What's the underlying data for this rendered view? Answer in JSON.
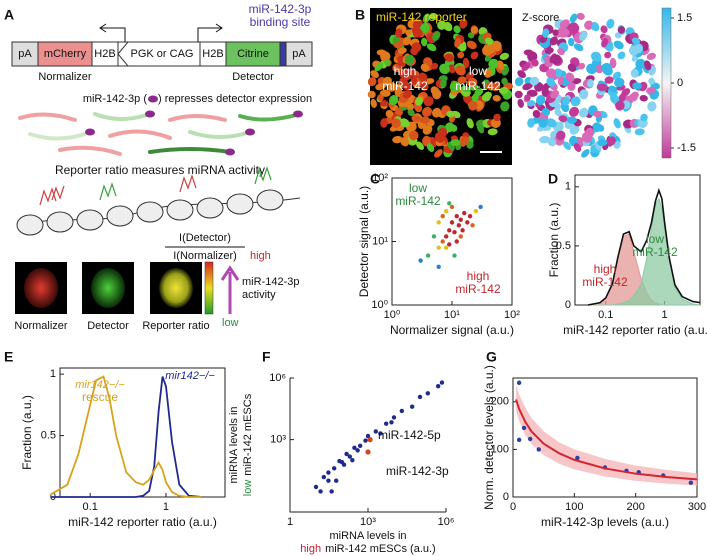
{
  "panel_labels": [
    "A",
    "B",
    "C",
    "D",
    "E",
    "F",
    "G"
  ],
  "panel_a": {
    "construct": [
      "pA",
      "mCherry",
      "H2B",
      "PGK or CAG",
      "H2B",
      "Citrine",
      "pA"
    ],
    "binding_site": [
      "miR-142-3p",
      "binding site"
    ],
    "normalizer": "Normalizer",
    "detector": "Detector",
    "repression": [
      "miR-142-3p (",
      ") represses detector expression"
    ],
    "ratio_caption": "Reporter ratio measures miRNA activity",
    "ratio_numerator": "I(Detector)",
    "ratio_denominator": "I(Normalizer)",
    "high": "high",
    "low": "low",
    "activity": [
      "miR-142-3p",
      "activity"
    ],
    "image_labels": [
      "Normalizer",
      "Detector",
      "Reporter ratio"
    ]
  },
  "panel_b": {
    "title": "miR-142 reporter",
    "high": [
      "high",
      "miR-142"
    ],
    "low": [
      "low",
      "miR-142"
    ],
    "zscore_title": "Z-score",
    "colorbar_ticks": [
      1.5,
      0,
      -1.5
    ]
  },
  "chart_data": [
    {
      "type": "scatter",
      "xlabel": "Normalizer signal (a.u.)",
      "ylabel": "Detector signal (a.u.)",
      "xlog": true,
      "ylog": true,
      "xlim": [
        1,
        100
      ],
      "ylim": [
        1,
        100
      ],
      "colormap": "density",
      "xticks": [
        {
          "value": 1,
          "label": "10⁰"
        },
        {
          "value": 10,
          "label": "10¹"
        },
        {
          "value": 100,
          "label": "10²"
        }
      ],
      "yticks": [
        {
          "value": 1,
          "label": "10⁰"
        },
        {
          "value": 10,
          "label": "10¹"
        },
        {
          "value": 100,
          "label": "10²"
        }
      ],
      "series": [
        {
          "color": "#2b3f9e",
          "x": [
            3,
            4,
            5,
            6,
            6,
            7,
            7,
            8,
            8,
            9,
            9,
            10,
            10,
            11,
            12,
            12,
            13,
            14,
            15,
            16,
            18,
            20,
            22,
            25,
            30,
            9,
            8,
            11,
            14,
            6
          ],
          "values": [
            5,
            6,
            12,
            8,
            20,
            10,
            25,
            12,
            30,
            15,
            9,
            20,
            35,
            14,
            25,
            10,
            18,
            22,
            15,
            28,
            20,
            25,
            18,
            30,
            35,
            40,
            8,
            6,
            12,
            4
          ]
        }
      ],
      "annotations": [
        {
          "text": "low",
          "color": "#2e8b3e"
        },
        {
          "text": "miR-142",
          "color": "#2e8b3e"
        },
        {
          "text": "high",
          "color": "#c0262d"
        },
        {
          "text": "miR-142",
          "color": "#c0262d"
        }
      ]
    },
    {
      "type": "area",
      "xlabel": "miR-142 reporter ratio (a.u.)",
      "ylabel": "Fraction (a.u.)",
      "xlog": true,
      "xlim": [
        0.03,
        4
      ],
      "ylim": [
        0,
        1.1
      ],
      "xticks": [
        0.1,
        1
      ],
      "yticks": [
        0,
        0.5,
        1
      ],
      "x": [
        0.05,
        0.08,
        0.1,
        0.13,
        0.16,
        0.2,
        0.25,
        0.3,
        0.4,
        0.5,
        0.6,
        0.7,
        0.8,
        0.9,
        1,
        1.2,
        1.5,
        2,
        3,
        4
      ],
      "series": [
        {
          "color": "#e39a95",
          "fill": true,
          "values": [
            0,
            0.02,
            0.06,
            0.18,
            0.4,
            0.58,
            0.6,
            0.45,
            0.22,
            0.1,
            0.04,
            0.02,
            0.01,
            0,
            0,
            0,
            0,
            0,
            0,
            0
          ]
        },
        {
          "color": "#8fc9a3",
          "fill": true,
          "values": [
            0,
            0,
            0,
            0,
            0.01,
            0.02,
            0.04,
            0.08,
            0.18,
            0.4,
            0.65,
            0.85,
            0.9,
            0.82,
            0.65,
            0.38,
            0.15,
            0.05,
            0.01,
            0
          ]
        },
        {
          "color": "#111111",
          "fill": false,
          "values": [
            0,
            0.02,
            0.06,
            0.18,
            0.4,
            0.6,
            0.62,
            0.5,
            0.45,
            0.55,
            0.7,
            0.88,
            0.97,
            0.9,
            0.7,
            0.4,
            0.17,
            0.07,
            0.03,
            0.02
          ]
        }
      ],
      "annotations": [
        {
          "text": "high",
          "color": "#c0262d"
        },
        {
          "text": "miR-142",
          "color": "#c0262d"
        },
        {
          "text": "low",
          "color": "#2e8b3e"
        },
        {
          "text": "miR-142",
          "color": "#2e8b3e"
        }
      ]
    },
    {
      "type": "line",
      "xlabel": "miR-142 reporter ratio (a.u.)",
      "ylabel": "Fraction (a.u.)",
      "xlog": true,
      "xlim": [
        0.04,
        6
      ],
      "ylim": [
        0,
        1.05
      ],
      "xticks": [
        0.1,
        1
      ],
      "yticks": [
        0,
        0.5,
        1
      ],
      "x": [
        0.03,
        0.05,
        0.07,
        0.1,
        0.12,
        0.15,
        0.18,
        0.22,
        0.3,
        0.4,
        0.5,
        0.6,
        0.7,
        0.8,
        0.9,
        1,
        1.2,
        1.5,
        2,
        3
      ],
      "series": [
        {
          "name": "mir142−/−",
          "color": "#1f2a8c",
          "values": [
            0,
            0,
            0,
            0,
            0,
            0,
            0,
            0,
            0,
            0,
            0.01,
            0.05,
            0.25,
            0.7,
            0.98,
            0.9,
            0.45,
            0.1,
            0.01,
            0
          ]
        },
        {
          "name": "mir142−/−",
          "color": "#d9a21b",
          "values": [
            0.02,
            0.1,
            0.35,
            0.75,
            0.95,
            0.98,
            0.8,
            0.5,
            0.2,
            0.12,
            0.1,
            0.14,
            0.22,
            0.28,
            0.22,
            0.12,
            0.04,
            0.01,
            0,
            0
          ]
        }
      ],
      "annotations": [
        {
          "text": "rescue",
          "color": "#d9a21b"
        }
      ]
    },
    {
      "type": "scatter",
      "xlabel": [
        "miRNA levels in",
        "high",
        "miR-142 mESCs (a.u.)"
      ],
      "xlabel_highlight_color": "#c0262d",
      "ylabel": [
        "miRNA levels in",
        "low",
        "miR-142 mESCs"
      ],
      "ylabel_highlight_color": "#2e8b3e",
      "xlog": true,
      "ylog": true,
      "xlim": [
        1,
        1000000
      ],
      "ylim": [
        0.3,
        1000000
      ],
      "xticks": [
        1,
        {
          "value": 1000,
          "label": "10³"
        },
        {
          "value": 1000000,
          "label": "10⁶"
        }
      ],
      "yticks": [
        {
          "value": 1000,
          "label": "10³"
        },
        {
          "value": 1000000,
          "label": "10⁶"
        }
      ],
      "series": [
        {
          "color": "#1f2a8c",
          "x": [
            10,
            20,
            30,
            50,
            80,
            100,
            150,
            200,
            300,
            500,
            800,
            1000,
            2000,
            3000,
            5000,
            8000,
            10000,
            20000,
            50000,
            100000,
            200000,
            500000,
            700000,
            15,
            40,
            60,
            120,
            250,
            400,
            30
          ],
          "values": [
            5,
            15,
            25,
            40,
            90,
            80,
            200,
            150,
            400,
            500,
            900,
            1500,
            2500,
            2000,
            6000,
            7000,
            12000,
            25000,
            40000,
            120000,
            180000,
            400000,
            600000,
            3,
            3,
            10,
            60,
            100,
            300,
            10
          ]
        },
        {
          "color": "#d0461e",
          "x": [
            1200,
            1000
          ],
          "values": [
            1000,
            250
          ]
        }
      ],
      "annotations": [
        {
          "text": "miR-142-5p",
          "color": "#111111"
        },
        {
          "text": "miR-142-3p",
          "color": "#111111"
        }
      ]
    },
    {
      "type": "scatter",
      "xlabel": "miR-142-3p levels  (a.u.)",
      "ylabel": "Norm. detector levels (a.u.)",
      "xlim": [
        0,
        300
      ],
      "ylim": [
        0,
        250
      ],
      "xticks": [
        0,
        100,
        200,
        300
      ],
      "yticks": [
        0,
        100,
        200
      ],
      "series": [
        {
          "color": "#2b3f9e",
          "x": [
            10,
            10,
            18,
            28,
            42,
            105,
            150,
            185,
            205,
            245,
            290
          ],
          "values": [
            240,
            120,
            145,
            122,
            100,
            82,
            62,
            55,
            52,
            45,
            30
          ]
        }
      ],
      "fit": {
        "color": "#d32630",
        "band_color": "#f4b8bc",
        "x": [
          5,
          10,
          20,
          30,
          50,
          75,
          100,
          150,
          200,
          250,
          300
        ],
        "values": [
          205,
          185,
          158,
          138,
          112,
          92,
          78,
          60,
          49,
          42,
          37
        ],
        "lower": [
          180,
          160,
          130,
          112,
          88,
          70,
          58,
          43,
          34,
          28,
          24
        ],
        "upper": [
          235,
          215,
          188,
          166,
          138,
          115,
          100,
          80,
          66,
          57,
          50
        ]
      }
    }
  ]
}
